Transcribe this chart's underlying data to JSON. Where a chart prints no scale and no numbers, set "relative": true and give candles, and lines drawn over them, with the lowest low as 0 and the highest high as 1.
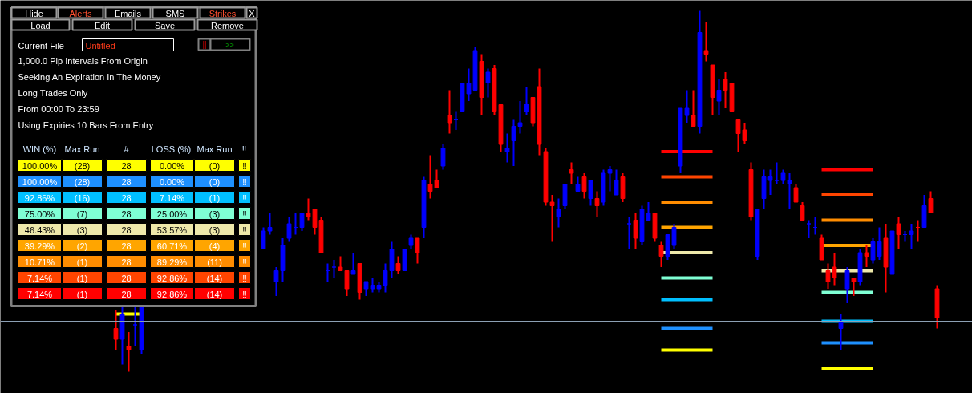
{
  "chart_data": [
    {
      "type": "candlestick",
      "relative": true,
      "categories": [
        null,
        null,
        null,
        null,
        null,
        null,
        null,
        null,
        null,
        null,
        null,
        null,
        null,
        null,
        null,
        null,
        null,
        null,
        null,
        null,
        null,
        null,
        null,
        null,
        null,
        null,
        null,
        null,
        null,
        null,
        null,
        null,
        null,
        null,
        null,
        null,
        null,
        null,
        null,
        null,
        null,
        null,
        null,
        null,
        null,
        null,
        null,
        null,
        null,
        null,
        null,
        null,
        null,
        null,
        null,
        null,
        null,
        null,
        null,
        null,
        null,
        null,
        null,
        null,
        null,
        null,
        null,
        null,
        null,
        null,
        null,
        null,
        null,
        null,
        null,
        null,
        null,
        null,
        null,
        null,
        null,
        null,
        null,
        null,
        null,
        null,
        null,
        null,
        null,
        null,
        null,
        null,
        null,
        null,
        null,
        null,
        null,
        null,
        null,
        null,
        null,
        null,
        null,
        null,
        null,
        null,
        null,
        null,
        null,
        null,
        null,
        null,
        null,
        null,
        null,
        null,
        null,
        null,
        null,
        null,
        null,
        null,
        null,
        null,
        null,
        null,
        null,
        null,
        null
      ],
      "ohlc": [
        [
          0.12,
          0.17,
          0.06,
          0.09
        ],
        [
          0.09,
          0.18,
          0.02,
          0.16
        ],
        [
          0.07,
          0.11,
          0,
          0.06
        ],
        [
          0.13,
          0.18,
          0.07,
          0.13
        ],
        [
          0.06,
          0.18,
          0.05,
          0.18
        ],
        null,
        null,
        null,
        null,
        null,
        null,
        null,
        null,
        null,
        null,
        null,
        null,
        null,
        null,
        null,
        null,
        null,
        null,
        [
          0.34,
          0.4,
          0.34,
          0.39
        ],
        [
          0.39,
          0.44,
          0.38,
          0.4
        ],
        [
          0.25,
          0.29,
          0.21,
          0.28
        ],
        [
          0.28,
          0.37,
          0.25,
          0.35
        ],
        [
          0.37,
          0.43,
          0.36,
          0.41
        ],
        [
          0.4,
          0.44,
          0.38,
          0.4
        ],
        [
          0.4,
          0.44,
          0.39,
          0.44
        ],
        [
          0.44,
          0.48,
          0.42,
          0.43
        ],
        [
          0.45,
          0.45,
          0.38,
          0.4
        ],
        [
          0.42,
          0.43,
          0.33,
          0.33
        ],
        [
          0.28,
          0.3,
          0.25,
          0.28
        ],
        [
          0.29,
          0.31,
          0.26,
          0.29
        ],
        [
          0.29,
          0.32,
          0.28,
          0.28
        ],
        [
          0.28,
          0.28,
          0.21,
          0.23
        ],
        [
          0.27,
          0.33,
          0.27,
          0.28
        ],
        [
          0.3,
          0.3,
          0.2,
          0.22
        ],
        [
          0.23,
          0.25,
          0.21,
          0.25
        ],
        [
          0.23,
          0.26,
          0.22,
          0.24
        ],
        [
          0.23,
          0.25,
          0.22,
          0.24
        ],
        [
          0.24,
          0.3,
          0.22,
          0.28
        ],
        [
          0.28,
          0.36,
          0.26,
          0.34
        ],
        [
          0.3,
          0.32,
          0.27,
          0.28
        ],
        [
          0.28,
          0.34,
          0.28,
          0.34
        ],
        [
          0.35,
          0.38,
          0.34,
          0.37
        ],
        [
          0.37,
          0.37,
          0.3,
          0.33
        ],
        [
          0.4,
          0.54,
          0.37,
          0.53
        ],
        [
          0.52,
          0.6,
          0.48,
          0.5
        ],
        [
          0.53,
          0.56,
          0.51,
          0.51
        ],
        [
          0.57,
          0.63,
          0.56,
          0.62
        ],
        [
          0.71,
          0.78,
          0.66,
          0.69
        ],
        [
          0.7,
          0.72,
          0.67,
          0.7
        ],
        [
          0.72,
          0.8,
          0.72,
          0.8
        ],
        [
          0.77,
          0.84,
          0.75,
          0.8
        ],
        [
          0.78,
          0.9,
          0.78,
          0.89
        ],
        [
          0.86,
          0.88,
          0.71,
          0.76
        ],
        [
          0.8,
          0.84,
          0.76,
          0.83
        ],
        [
          0.84,
          0.85,
          0.71,
          0.72
        ],
        [
          0.74,
          0.74,
          0.61,
          0.63
        ],
        [
          0.61,
          0.66,
          0.58,
          0.62
        ],
        [
          0.64,
          0.7,
          0.57,
          0.68
        ],
        [
          0.68,
          0.75,
          0.66,
          0.69
        ],
        [
          0.72,
          0.79,
          0.71,
          0.74
        ],
        [
          0.76,
          0.76,
          0.68,
          0.69
        ],
        [
          0.79,
          0.84,
          0.6,
          0.63
        ],
        [
          0.61,
          0.62,
          0.46,
          0.47
        ],
        [
          0.47,
          0.49,
          0.36,
          0.46
        ],
        [
          0.43,
          0.48,
          0.4,
          0.45
        ],
        [
          0.46,
          0.52,
          0.45,
          0.52
        ],
        [
          0.56,
          0.58,
          0.52,
          0.55
        ],
        [
          0.5,
          0.54,
          0.5,
          0.52
        ],
        [
          0.54,
          0.55,
          0.48,
          0.5
        ],
        [
          0.48,
          0.53,
          0.46,
          0.53
        ],
        [
          0.48,
          0.5,
          0.43,
          0.46
        ],
        [
          0.47,
          0.56,
          0.46,
          0.55
        ],
        [
          0.55,
          0.57,
          0.5,
          0.56
        ],
        [
          0.49,
          0.56,
          0.49,
          0.53
        ],
        [
          0.54,
          0.55,
          0.47,
          0.48
        ],
        [
          0.41,
          0.43,
          0.34,
          0.41
        ],
        [
          0.42,
          0.44,
          0.34,
          0.37
        ],
        [
          0.36,
          0.46,
          0.35,
          0.45
        ],
        [
          0.42,
          0.47,
          0.42,
          0.44
        ],
        [
          0.44,
          0.44,
          0.36,
          0.37
        ],
        [
          0.35,
          0.36,
          0.29,
          0.32
        ],
        [
          0.32,
          0.38,
          0.31,
          0.38
        ],
        [
          0.35,
          0.41,
          0.34,
          0.4
        ],
        [
          0.57,
          0.73,
          0.55,
          0.73
        ],
        [
          0.71,
          0.78,
          0.69,
          0.73
        ],
        [
          0.71,
          0.78,
          0.68,
          0.68
        ],
        [
          0.68,
          1.0,
          0.66,
          0.94
        ],
        [
          0.89,
          0.97,
          0.86,
          0.88
        ],
        [
          0.85,
          0.85,
          0.71,
          0.76
        ],
        [
          0.75,
          0.81,
          0.71,
          0.78
        ],
        [
          0.81,
          0.83,
          0.73,
          0.78
        ],
        [
          0.8,
          0.8,
          0.72,
          0.72
        ],
        [
          0.7,
          0.7,
          0.61,
          0.66
        ],
        [
          0.67,
          0.69,
          0.63,
          0.64
        ],
        [
          0.56,
          0.58,
          0.42,
          0.43
        ],
        [
          0.32,
          0.45,
          0.31,
          0.45
        ],
        [
          0.48,
          0.56,
          0.45,
          0.54
        ],
        [
          0.53,
          0.56,
          0.49,
          0.54
        ],
        [
          0.53,
          0.58,
          0.52,
          0.53
        ],
        [
          0.53,
          0.56,
          0.52,
          0.55
        ],
        [
          0.52,
          0.55,
          0.45,
          0.53
        ],
        [
          0.51,
          0.52,
          0.47,
          0.47
        ],
        [
          0.46,
          0.47,
          0.42,
          0.42
        ],
        [
          0.41,
          0.42,
          0.37,
          0.41
        ],
        [
          0.4,
          0.43,
          0.38,
          0.4
        ],
        [
          0.37,
          0.38,
          0.31,
          0.31
        ],
        [
          0.28,
          0.3,
          0.23,
          0.25
        ],
        [
          0.29,
          0.33,
          0.24,
          0.26
        ],
        [
          0.12,
          0.16,
          0.06,
          0.14
        ],
        [
          0.23,
          0.29,
          0.19,
          0.28
        ],
        [
          0.26,
          0.26,
          0.21,
          0.25
        ],
        [
          0.25,
          0.34,
          0.24,
          0.33
        ],
        [
          0.33,
          0.35,
          0.29,
          0.32
        ],
        [
          0.31,
          0.37,
          0.3,
          0.36
        ],
        [
          0.32,
          0.4,
          0.31,
          0.36
        ],
        [
          0.37,
          0.41,
          0.22,
          0.29
        ],
        [
          0.27,
          0.39,
          0.27,
          0.39
        ],
        [
          0.41,
          0.43,
          0.34,
          0.38
        ],
        [
          0.38,
          0.39,
          0.36,
          0.38
        ],
        [
          0.38,
          0.41,
          0.34,
          0.39
        ],
        [
          0.4,
          0.42,
          0.36,
          0.4
        ],
        [
          0.4,
          0.49,
          0.4,
          0.46
        ],
        [
          0.48,
          0.5,
          0.44,
          0.44
        ],
        [
          0.23,
          0.24,
          0.12,
          0.15
        ]
      ],
      "colors": [
        "#ff0000",
        "#0000ff",
        "#ff0000",
        "#0000ff",
        "#0000ff",
        null,
        null,
        null,
        null,
        null,
        null,
        null,
        null,
        null,
        null,
        null,
        null,
        null,
        null,
        null,
        null,
        null,
        null,
        "#0000ff",
        "#0000ff",
        "#0000ff",
        "#0000ff",
        "#0000ff",
        "#0000ff",
        "#0000ff",
        "#ff0000",
        "#ff0000",
        "#ff0000",
        "#0000ff",
        "#0000ff",
        "#ff0000",
        "#ff0000",
        "#0000ff",
        "#ff0000",
        "#0000ff",
        "#0000ff",
        "#0000ff",
        "#0000ff",
        "#0000ff",
        "#ff0000",
        "#0000ff",
        "#0000ff",
        "#ff0000",
        "#0000ff",
        "#ff0000",
        "#ff0000",
        "#0000ff",
        "#ff0000",
        "#0000ff",
        "#0000ff",
        "#0000ff",
        "#0000ff",
        "#ff0000",
        "#0000ff",
        "#ff0000",
        "#ff0000",
        "#0000ff",
        "#0000ff",
        "#0000ff",
        "#0000ff",
        "#ff0000",
        "#ff0000",
        "#ff0000",
        "#ff0000",
        "#0000ff",
        "#0000ff",
        "#ff0000",
        "#0000ff",
        "#ff0000",
        "#0000ff",
        "#ff0000",
        "#0000ff",
        "#0000ff",
        "#0000ff",
        "#ff0000",
        "#0000ff",
        "#ff0000",
        "#0000ff",
        "#0000ff",
        "#ff0000",
        "#ff0000",
        "#0000ff",
        "#0000ff",
        "#0000ff",
        "#0000ff",
        "#ff0000",
        "#0000ff",
        "#ff0000",
        "#ff0000",
        "#0000ff",
        "#ff0000",
        "#ff0000",
        "#ff0000",
        "#ff0000",
        "#ff0000",
        "#0000ff",
        "#0000ff",
        "#0000ff",
        "#0000ff",
        "#0000ff",
        "#0000ff",
        "#ff0000",
        "#ff0000",
        "#0000ff",
        "#0000ff",
        "#ff0000",
        "#ff0000",
        "#ff0000",
        "#0000ff",
        "#0000ff",
        "#ff0000",
        "#0000ff",
        "#ff0000",
        "#0000ff",
        "#0000ff",
        "#ff0000",
        "#0000ff",
        "#ff0000",
        "#0000ff",
        "#0000ff",
        "#ff0000",
        "#0000ff",
        "#ff0000",
        "#ff0000"
      ],
      "series": [
        {
          "type": "line",
          "color": "#ff0000",
          "values": [
            null,
            null,
            null,
            null,
            null,
            null,
            null,
            null,
            null,
            null,
            null,
            null,
            null,
            null,
            null,
            null,
            null,
            null,
            null,
            null,
            null,
            null,
            null,
            null,
            null,
            null,
            null,
            null,
            null,
            null,
            null,
            null,
            null,
            null,
            null,
            null,
            null,
            null,
            null,
            null,
            null,
            null,
            null,
            null,
            null,
            null,
            null,
            null,
            null,
            null,
            null,
            null,
            null,
            null,
            null,
            null,
            null,
            null,
            null,
            null,
            null,
            null,
            null,
            null,
            null,
            null,
            null,
            null,
            null,
            null,
            null,
            null,
            null,
            null,
            null,
            null,
            null,
            null,
            null,
            null,
            null,
            null,
            null,
            null,
            null,
            0.61,
            0.61,
            0.61,
            0.61,
            0.61,
            0.61,
            0.61,
            0.61,
            0.61,
            null,
            null,
            null,
            null,
            null,
            null,
            null,
            null,
            null,
            null,
            null,
            null,
            null,
            null,
            null,
            null,
            0.56,
            0.56,
            0.56,
            0.56,
            0.56,
            0.56,
            0.56,
            0.56,
            0.56,
            null,
            null,
            null,
            null,
            null,
            null,
            null,
            null,
            null,
            null
          ]
        },
        {
          "type": "line",
          "color": "#ff4500",
          "values": [
            null,
            null,
            null,
            null,
            null,
            null,
            null,
            null,
            null,
            null,
            null,
            null,
            null,
            null,
            null,
            null,
            null,
            null,
            null,
            null,
            null,
            null,
            null,
            null,
            null,
            null,
            null,
            null,
            null,
            null,
            null,
            null,
            null,
            null,
            null,
            null,
            null,
            null,
            null,
            null,
            null,
            null,
            null,
            null,
            null,
            null,
            null,
            null,
            null,
            null,
            null,
            null,
            null,
            null,
            null,
            null,
            null,
            null,
            null,
            null,
            null,
            null,
            null,
            null,
            null,
            null,
            null,
            null,
            null,
            null,
            null,
            null,
            null,
            null,
            null,
            null,
            null,
            null,
            null,
            null,
            null,
            null,
            null,
            null,
            null,
            0.54,
            0.54,
            0.54,
            0.54,
            0.54,
            0.54,
            0.54,
            0.54,
            0.54,
            null,
            null,
            null,
            null,
            null,
            null,
            null,
            null,
            null,
            null,
            null,
            null,
            null,
            null,
            null,
            null,
            0.49,
            0.49,
            0.49,
            0.49,
            0.49,
            0.49,
            0.49,
            0.49,
            0.49,
            null,
            null,
            null,
            null,
            null,
            null,
            null,
            null,
            null,
            null
          ]
        },
        {
          "type": "line",
          "color": "#ff8c00",
          "values": [
            null,
            null,
            null,
            null,
            null,
            null,
            null,
            null,
            null,
            null,
            null,
            null,
            null,
            null,
            null,
            null,
            null,
            null,
            null,
            null,
            null,
            null,
            null,
            null,
            null,
            null,
            null,
            null,
            null,
            null,
            null,
            null,
            null,
            null,
            null,
            null,
            null,
            null,
            null,
            null,
            null,
            null,
            null,
            null,
            null,
            null,
            null,
            null,
            null,
            null,
            null,
            null,
            null,
            null,
            null,
            null,
            null,
            null,
            null,
            null,
            null,
            null,
            null,
            null,
            null,
            null,
            null,
            null,
            null,
            null,
            null,
            null,
            null,
            null,
            null,
            null,
            null,
            null,
            null,
            null,
            null,
            null,
            null,
            null,
            null,
            0.47,
            0.47,
            0.47,
            0.47,
            0.47,
            0.47,
            0.47,
            0.47,
            0.47,
            null,
            null,
            null,
            null,
            null,
            null,
            null,
            null,
            null,
            null,
            null,
            null,
            null,
            null,
            null,
            null,
            0.42,
            0.42,
            0.42,
            0.42,
            0.42,
            0.42,
            0.42,
            0.42,
            0.42,
            null,
            null,
            null,
            null,
            null,
            null,
            null,
            null,
            null,
            null
          ]
        },
        {
          "type": "line",
          "color": "#ffa500",
          "values": [
            null,
            null,
            null,
            null,
            null,
            null,
            null,
            null,
            null,
            null,
            null,
            null,
            null,
            null,
            null,
            null,
            null,
            null,
            null,
            null,
            null,
            null,
            null,
            null,
            null,
            null,
            null,
            null,
            null,
            null,
            null,
            null,
            null,
            null,
            null,
            null,
            null,
            null,
            null,
            null,
            null,
            null,
            null,
            null,
            null,
            null,
            null,
            null,
            null,
            null,
            null,
            null,
            null,
            null,
            null,
            null,
            null,
            null,
            null,
            null,
            null,
            null,
            null,
            null,
            null,
            null,
            null,
            null,
            null,
            null,
            null,
            null,
            null,
            null,
            null,
            null,
            null,
            null,
            null,
            null,
            null,
            null,
            null,
            null,
            null,
            0.4,
            0.4,
            0.4,
            0.4,
            0.4,
            0.4,
            0.4,
            0.4,
            0.4,
            null,
            null,
            null,
            null,
            null,
            null,
            null,
            null,
            null,
            null,
            null,
            null,
            null,
            null,
            null,
            null,
            0.35,
            0.35,
            0.35,
            0.35,
            0.35,
            0.35,
            0.35,
            0.35,
            0.35,
            null,
            null,
            null,
            null,
            null,
            null,
            null,
            null,
            null,
            null
          ]
        },
        {
          "type": "line",
          "color": "#eee8aa",
          "values": [
            null,
            null,
            null,
            null,
            null,
            null,
            null,
            null,
            null,
            null,
            null,
            null,
            null,
            null,
            null,
            null,
            null,
            null,
            null,
            null,
            null,
            null,
            null,
            null,
            null,
            null,
            null,
            null,
            null,
            null,
            null,
            null,
            null,
            null,
            null,
            null,
            null,
            null,
            null,
            null,
            null,
            null,
            null,
            null,
            null,
            null,
            null,
            null,
            null,
            null,
            null,
            null,
            null,
            null,
            null,
            null,
            null,
            null,
            null,
            null,
            null,
            null,
            null,
            null,
            null,
            null,
            null,
            null,
            null,
            null,
            null,
            null,
            null,
            null,
            null,
            null,
            null,
            null,
            null,
            null,
            null,
            null,
            null,
            null,
            null,
            0.33,
            0.33,
            0.33,
            0.33,
            0.33,
            0.33,
            0.33,
            0.33,
            0.33,
            null,
            null,
            null,
            null,
            null,
            null,
            null,
            null,
            null,
            null,
            null,
            null,
            null,
            null,
            null,
            null,
            0.28,
            0.28,
            0.28,
            0.28,
            0.28,
            0.28,
            0.28,
            0.28,
            0.28,
            null,
            null,
            null,
            null,
            null,
            null,
            null,
            null,
            null,
            null
          ]
        },
        {
          "type": "line",
          "color": "#7fffd4",
          "values": [
            null,
            null,
            null,
            null,
            null,
            null,
            null,
            null,
            null,
            null,
            null,
            null,
            null,
            null,
            null,
            null,
            null,
            null,
            null,
            null,
            null,
            null,
            null,
            null,
            null,
            null,
            null,
            null,
            null,
            null,
            null,
            null,
            null,
            null,
            null,
            null,
            null,
            null,
            null,
            null,
            null,
            null,
            null,
            null,
            null,
            null,
            null,
            null,
            null,
            null,
            null,
            null,
            null,
            null,
            null,
            null,
            null,
            null,
            null,
            null,
            null,
            null,
            null,
            null,
            null,
            null,
            null,
            null,
            null,
            null,
            null,
            null,
            null,
            null,
            null,
            null,
            null,
            null,
            null,
            null,
            null,
            null,
            null,
            null,
            null,
            0.26,
            0.26,
            0.26,
            0.26,
            0.26,
            0.26,
            0.26,
            0.26,
            0.26,
            null,
            null,
            null,
            null,
            null,
            null,
            null,
            null,
            null,
            null,
            null,
            null,
            null,
            null,
            null,
            null,
            0.22,
            0.22,
            0.22,
            0.22,
            0.22,
            0.22,
            0.22,
            0.22,
            0.22,
            null,
            null,
            null,
            null,
            null,
            null,
            null,
            null,
            null,
            null
          ]
        },
        {
          "type": "line",
          "color": "#00bfff",
          "values": [
            null,
            null,
            null,
            null,
            null,
            null,
            null,
            null,
            null,
            null,
            null,
            null,
            null,
            null,
            null,
            null,
            null,
            null,
            null,
            null,
            null,
            null,
            null,
            null,
            null,
            null,
            null,
            null,
            null,
            null,
            null,
            null,
            null,
            null,
            null,
            null,
            null,
            null,
            null,
            null,
            null,
            null,
            null,
            null,
            null,
            null,
            null,
            null,
            null,
            null,
            null,
            null,
            null,
            null,
            null,
            null,
            null,
            null,
            null,
            null,
            null,
            null,
            null,
            null,
            null,
            null,
            null,
            null,
            null,
            null,
            null,
            null,
            null,
            null,
            null,
            null,
            null,
            null,
            null,
            null,
            null,
            null,
            null,
            null,
            null,
            0.2,
            0.2,
            0.2,
            0.2,
            0.2,
            0.2,
            0.2,
            0.2,
            0.2,
            null,
            null,
            null,
            null,
            null,
            null,
            null,
            null,
            null,
            null,
            null,
            null,
            null,
            null,
            null,
            null,
            0.14,
            0.14,
            0.14,
            0.14,
            0.14,
            0.14,
            0.14,
            0.14,
            0.14,
            null,
            null,
            null,
            null,
            null,
            null,
            null,
            null,
            null,
            null
          ]
        },
        {
          "type": "line",
          "color": "#1e90ff",
          "values": [
            null,
            null,
            null,
            null,
            null,
            null,
            null,
            null,
            null,
            null,
            null,
            null,
            null,
            null,
            null,
            null,
            null,
            null,
            null,
            null,
            null,
            null,
            null,
            null,
            null,
            null,
            null,
            null,
            null,
            null,
            null,
            null,
            null,
            null,
            null,
            null,
            null,
            null,
            null,
            null,
            null,
            null,
            null,
            null,
            null,
            null,
            null,
            null,
            null,
            null,
            null,
            null,
            null,
            null,
            null,
            null,
            null,
            null,
            null,
            null,
            null,
            null,
            null,
            null,
            null,
            null,
            null,
            null,
            null,
            null,
            null,
            null,
            null,
            null,
            null,
            null,
            null,
            null,
            null,
            null,
            null,
            null,
            null,
            null,
            null,
            0.12,
            0.12,
            0.12,
            0.12,
            0.12,
            0.12,
            0.12,
            0.12,
            0.12,
            null,
            null,
            null,
            null,
            null,
            null,
            null,
            null,
            null,
            null,
            null,
            null,
            null,
            null,
            null,
            null,
            0.08,
            0.08,
            0.08,
            0.08,
            0.08,
            0.08,
            0.08,
            0.08,
            0.08,
            null,
            null,
            null,
            null,
            null,
            null,
            null,
            null,
            null,
            null
          ]
        },
        {
          "type": "line",
          "color": "#ffff00",
          "values": [
            0.16,
            0.16,
            0.16,
            0.16,
            0.16,
            null,
            null,
            null,
            null,
            null,
            null,
            null,
            null,
            null,
            null,
            null,
            null,
            null,
            null,
            null,
            null,
            null,
            null,
            null,
            null,
            null,
            null,
            null,
            null,
            null,
            null,
            null,
            null,
            null,
            null,
            null,
            null,
            null,
            null,
            null,
            null,
            null,
            null,
            null,
            null,
            null,
            null,
            null,
            null,
            null,
            null,
            null,
            null,
            null,
            null,
            null,
            null,
            null,
            null,
            null,
            null,
            null,
            null,
            null,
            null,
            null,
            null,
            null,
            null,
            null,
            null,
            null,
            null,
            null,
            null,
            null,
            null,
            null,
            null,
            null,
            null,
            null,
            null,
            null,
            null,
            0.06,
            0.06,
            0.06,
            0.06,
            0.06,
            0.06,
            0.06,
            0.06,
            0.06,
            null,
            null,
            null,
            null,
            null,
            null,
            null,
            null,
            null,
            null,
            null,
            null,
            null,
            null,
            null,
            null,
            0.01,
            0.01,
            0.01,
            0.01,
            0.01,
            0.01,
            0.01,
            0.01,
            0.01,
            null,
            null,
            null,
            null,
            null,
            null,
            null,
            null,
            null,
            null
          ]
        }
      ],
      "ref_lines": [
        {
          "axis": "y",
          "value": 0.14,
          "color": "#8ca0b4"
        }
      ]
    },
    {
      "type": "other",
      "annotations": [
        "Hide",
        "Alerts",
        "Emails",
        "SMS",
        "Strikes",
        "X",
        "Load",
        "Edit",
        "Save",
        "Remove",
        "Current File",
        "Untitled",
        "||",
        ">>",
        "1,000.0 Pip Intervals From Origin",
        "Seeking An Expiration In The Money",
        "Long Trades Only",
        "From 00:00 To 23:59",
        "Using Expiries 10 Bars From Entry"
      ]
    },
    {
      "type": "other",
      "colors": [
        "#ffff00",
        "#1e90ff",
        "#00bfff",
        "#7fffd4",
        "#eee8aa",
        "#ffa500",
        "#ff8c00",
        "#ff4500",
        "#ff0000"
      ],
      "annotations": [
        "WIN (%)",
        "Max Run",
        "#",
        "LOSS (%)",
        "Max Run",
        "‼",
        "100.00%",
        "(28)",
        "28",
        "0.00%",
        "(0)",
        "‼",
        "100.00%",
        "(28)",
        "28",
        "0.00%",
        "(0)",
        "‼",
        "92.86%",
        "(16)",
        "28",
        "7.14%",
        "(1)",
        "‼",
        "75.00%",
        "(7)",
        "28",
        "25.00%",
        "(3)",
        "‼",
        "46.43%",
        "(3)",
        "28",
        "53.57%",
        "(3)",
        "‼",
        "39.29%",
        "(2)",
        "28",
        "60.71%",
        "(4)",
        "‼",
        "10.71%",
        "(1)",
        "28",
        "89.29%",
        "(11)",
        "‼",
        "7.14%",
        "(1)",
        "28",
        "92.86%",
        "(14)",
        "‼",
        "7.14%",
        "(1)",
        "28",
        "92.86%",
        "(14)",
        "‼"
      ]
    }
  ]
}
